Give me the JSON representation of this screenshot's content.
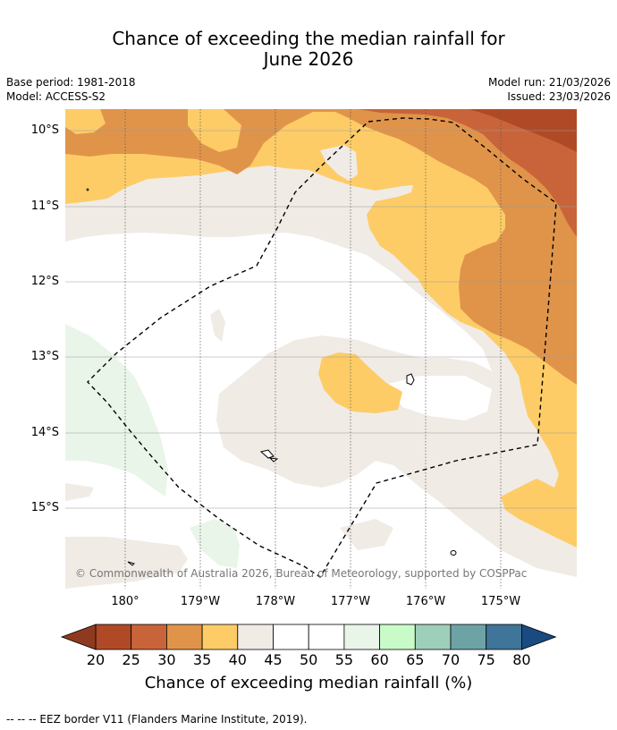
{
  "title": {
    "line1": "Chance of exceeding the median rainfall for",
    "line2": "June 2026"
  },
  "meta": {
    "base_period": "Base period: 1981-2018",
    "model": "Model: ACCESS-S2",
    "model_run": "Model run: 21/03/2026",
    "issued": "Issued: 23/03/2026"
  },
  "map": {
    "lat_labels": [
      "10°S",
      "11°S",
      "12°S",
      "13°S",
      "14°S",
      "15°S"
    ],
    "lon_labels": [
      "180°",
      "179°W",
      "178°W",
      "177°W",
      "176°W",
      "175°W"
    ],
    "copyright": "© Commonwealth of Australia 2026, Bureau of Meteorology, supported by COSPPac"
  },
  "colorbar": {
    "ticks": [
      "20",
      "25",
      "30",
      "35",
      "40",
      "45",
      "50",
      "55",
      "60",
      "65",
      "70",
      "75",
      "80"
    ],
    "label": "Chance of exceeding median rainfall (%)",
    "colors": [
      "#b04a26",
      "#c9643a",
      "#e0944a",
      "#fdcc66",
      "#f0ebe5",
      "#ffffff",
      "#ffffff",
      "#eaf5ea",
      "#c8fbc8",
      "#9dcfbb",
      "#6ea3a6",
      "#3f7598"
    ],
    "under_color": "#8f3a20",
    "over_color": "#1a4b80"
  },
  "footnote": "--  --  -- EEZ border V11 (Flanders Marine Institute, 2019)."
}
